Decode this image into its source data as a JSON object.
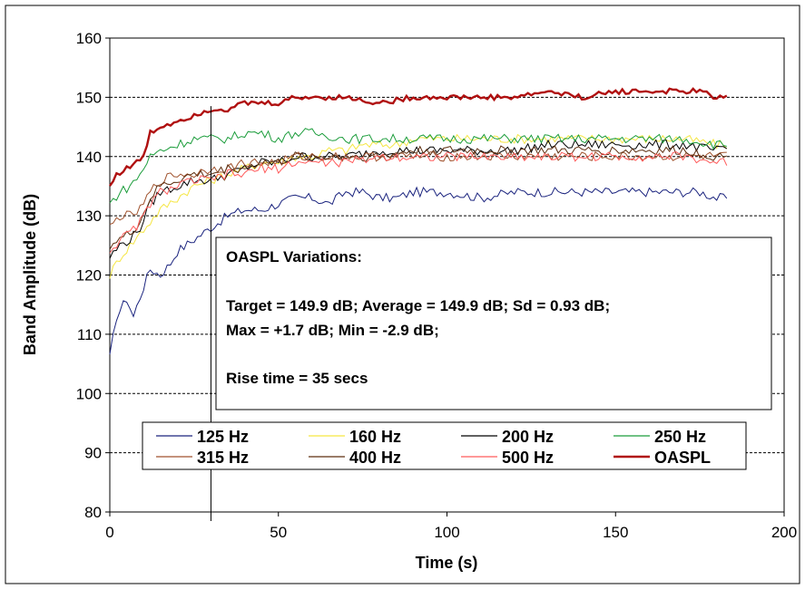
{
  "chart_data": {
    "type": "line",
    "title": "",
    "xlabel": "Time (s)",
    "ylabel": "Band Amplitude (dB)",
    "xlim": [
      0,
      200
    ],
    "ylim": [
      80,
      160
    ],
    "x_ticks": [
      "0",
      "50",
      "100",
      "150",
      "200"
    ],
    "y_ticks": [
      "80",
      "90",
      "100",
      "110",
      "120",
      "130",
      "140",
      "150",
      "160"
    ],
    "grid": {
      "y_major": true,
      "x_major": false,
      "style": "dashed"
    },
    "legend_position": "bottom-center",
    "series": [
      {
        "name": "125 Hz",
        "color": "#1a237e",
        "points": [
          [
            0,
            106
          ],
          [
            2,
            113
          ],
          [
            5,
            116
          ],
          [
            7,
            113
          ],
          [
            10,
            118
          ],
          [
            12,
            121
          ],
          [
            15,
            120
          ],
          [
            18,
            122
          ],
          [
            20,
            124
          ],
          [
            25,
            126
          ],
          [
            30,
            128
          ],
          [
            35,
            130
          ],
          [
            40,
            131
          ],
          [
            45,
            131
          ],
          [
            50,
            132
          ],
          [
            55,
            133
          ],
          [
            60,
            133
          ],
          [
            65,
            132
          ],
          [
            70,
            134
          ],
          [
            75,
            134
          ],
          [
            80,
            133
          ],
          [
            85,
            133
          ],
          [
            90,
            134
          ],
          [
            95,
            134
          ],
          [
            100,
            134
          ],
          [
            110,
            133
          ],
          [
            120,
            134
          ],
          [
            130,
            134
          ],
          [
            140,
            134
          ],
          [
            150,
            134
          ],
          [
            160,
            134
          ],
          [
            170,
            134
          ],
          [
            175,
            134
          ],
          [
            180,
            133
          ],
          [
            183,
            133
          ]
        ]
      },
      {
        "name": "160 Hz",
        "color": "#f5e642",
        "points": [
          [
            0,
            120
          ],
          [
            3,
            123
          ],
          [
            6,
            125
          ],
          [
            9,
            127
          ],
          [
            12,
            129
          ],
          [
            15,
            131
          ],
          [
            20,
            133
          ],
          [
            25,
            135
          ],
          [
            30,
            136
          ],
          [
            35,
            137
          ],
          [
            40,
            138
          ],
          [
            45,
            139
          ],
          [
            50,
            139
          ],
          [
            55,
            140
          ],
          [
            60,
            140
          ],
          [
            65,
            141
          ],
          [
            70,
            141
          ],
          [
            75,
            142
          ],
          [
            80,
            142
          ],
          [
            85,
            142
          ],
          [
            90,
            143
          ],
          [
            95,
            143
          ],
          [
            100,
            143
          ],
          [
            110,
            143
          ],
          [
            120,
            143
          ],
          [
            130,
            143
          ],
          [
            140,
            143
          ],
          [
            150,
            143
          ],
          [
            160,
            143
          ],
          [
            170,
            143
          ],
          [
            180,
            142
          ],
          [
            183,
            142
          ]
        ]
      },
      {
        "name": "200 Hz",
        "color": "#000000",
        "points": [
          [
            0,
            123
          ],
          [
            3,
            125
          ],
          [
            6,
            126
          ],
          [
            9,
            128
          ],
          [
            12,
            132
          ],
          [
            15,
            134
          ],
          [
            20,
            135
          ],
          [
            25,
            136
          ],
          [
            30,
            136
          ],
          [
            35,
            137
          ],
          [
            40,
            138
          ],
          [
            45,
            139
          ],
          [
            50,
            139
          ],
          [
            55,
            140
          ],
          [
            60,
            140
          ],
          [
            70,
            140
          ],
          [
            80,
            141
          ],
          [
            90,
            141
          ],
          [
            100,
            141
          ],
          [
            110,
            141
          ],
          [
            120,
            141
          ],
          [
            130,
            142
          ],
          [
            140,
            142
          ],
          [
            150,
            142
          ],
          [
            160,
            142
          ],
          [
            170,
            142
          ],
          [
            180,
            141
          ],
          [
            183,
            141
          ]
        ]
      },
      {
        "name": "250 Hz",
        "color": "#1a9c3a",
        "points": [
          [
            0,
            132
          ],
          [
            3,
            134
          ],
          [
            6,
            135
          ],
          [
            9,
            137
          ],
          [
            12,
            140
          ],
          [
            15,
            141
          ],
          [
            20,
            142
          ],
          [
            25,
            143
          ],
          [
            30,
            143
          ],
          [
            35,
            143
          ],
          [
            40,
            144
          ],
          [
            45,
            144
          ],
          [
            50,
            143
          ],
          [
            55,
            144
          ],
          [
            60,
            144
          ],
          [
            70,
            143
          ],
          [
            80,
            143
          ],
          [
            90,
            143
          ],
          [
            100,
            143
          ],
          [
            110,
            143
          ],
          [
            120,
            143
          ],
          [
            130,
            143
          ],
          [
            140,
            143
          ],
          [
            150,
            143
          ],
          [
            160,
            143
          ],
          [
            170,
            143
          ],
          [
            180,
            142
          ],
          [
            183,
            142
          ]
        ]
      },
      {
        "name": "315 Hz",
        "color": "#a0522d",
        "points": [
          [
            0,
            128
          ],
          [
            3,
            130
          ],
          [
            6,
            130
          ],
          [
            9,
            131
          ],
          [
            12,
            134
          ],
          [
            15,
            136
          ],
          [
            20,
            137
          ],
          [
            25,
            137
          ],
          [
            30,
            138
          ],
          [
            35,
            138
          ],
          [
            40,
            139
          ],
          [
            45,
            139
          ],
          [
            50,
            139
          ],
          [
            55,
            140
          ],
          [
            60,
            140
          ],
          [
            70,
            140
          ],
          [
            80,
            140
          ],
          [
            90,
            140
          ],
          [
            100,
            140
          ],
          [
            110,
            140
          ],
          [
            120,
            140
          ],
          [
            130,
            140
          ],
          [
            140,
            140
          ],
          [
            150,
            140
          ],
          [
            160,
            140
          ],
          [
            170,
            140
          ],
          [
            180,
            140
          ],
          [
            183,
            140
          ]
        ]
      },
      {
        "name": "400 Hz",
        "color": "#5d2e0f",
        "points": [
          [
            0,
            125
          ],
          [
            3,
            126
          ],
          [
            6,
            127
          ],
          [
            9,
            129
          ],
          [
            12,
            133
          ],
          [
            15,
            135
          ],
          [
            20,
            136
          ],
          [
            25,
            137
          ],
          [
            30,
            137
          ],
          [
            35,
            138
          ],
          [
            40,
            138
          ],
          [
            45,
            139
          ],
          [
            50,
            139
          ],
          [
            55,
            140
          ],
          [
            60,
            140
          ],
          [
            70,
            140
          ],
          [
            80,
            140
          ],
          [
            90,
            141
          ],
          [
            100,
            141
          ],
          [
            110,
            141
          ],
          [
            120,
            141
          ],
          [
            130,
            141
          ],
          [
            140,
            141
          ],
          [
            150,
            141
          ],
          [
            160,
            141
          ],
          [
            170,
            141
          ],
          [
            180,
            140
          ],
          [
            183,
            140
          ]
        ]
      },
      {
        "name": "500 Hz",
        "color": "#ff5a5a",
        "points": [
          [
            0,
            124
          ],
          [
            3,
            126
          ],
          [
            6,
            127
          ],
          [
            9,
            129
          ],
          [
            12,
            132
          ],
          [
            15,
            134
          ],
          [
            20,
            135
          ],
          [
            25,
            136
          ],
          [
            30,
            136
          ],
          [
            35,
            137
          ],
          [
            40,
            137
          ],
          [
            45,
            138
          ],
          [
            50,
            138
          ],
          [
            55,
            139
          ],
          [
            60,
            139
          ],
          [
            70,
            139
          ],
          [
            80,
            140
          ],
          [
            90,
            140
          ],
          [
            100,
            140
          ],
          [
            110,
            140
          ],
          [
            120,
            140
          ],
          [
            130,
            140
          ],
          [
            140,
            140
          ],
          [
            150,
            140
          ],
          [
            160,
            140
          ],
          [
            170,
            140
          ],
          [
            180,
            139
          ],
          [
            183,
            139
          ]
        ]
      },
      {
        "name": "OASPL",
        "color": "#b01010",
        "points": [
          [
            0,
            135
          ],
          [
            2,
            137
          ],
          [
            5,
            138
          ],
          [
            8,
            139
          ],
          [
            10,
            140
          ],
          [
            12,
            144
          ],
          [
            15,
            145
          ],
          [
            20,
            146
          ],
          [
            25,
            147
          ],
          [
            30,
            148
          ],
          [
            35,
            148
          ],
          [
            40,
            149
          ],
          [
            45,
            149
          ],
          [
            50,
            149
          ],
          [
            55,
            150
          ],
          [
            60,
            150
          ],
          [
            70,
            150
          ],
          [
            80,
            149
          ],
          [
            90,
            150
          ],
          [
            100,
            150
          ],
          [
            110,
            150
          ],
          [
            120,
            150
          ],
          [
            130,
            151
          ],
          [
            140,
            150
          ],
          [
            150,
            151
          ],
          [
            160,
            151
          ],
          [
            170,
            151
          ],
          [
            175,
            151
          ],
          [
            180,
            150
          ],
          [
            183,
            150
          ]
        ]
      }
    ],
    "annotations": {
      "box_lines": [
        "OASPL Variations:",
        "",
        "Target = 149.9 dB; Average = 149.9 dB; Sd = 0.93 dB;",
        "Max = +1.7 dB; Min = -2.9 dB;",
        "",
        "Rise time = 35 secs"
      ],
      "vertical_line_x": 30
    }
  }
}
